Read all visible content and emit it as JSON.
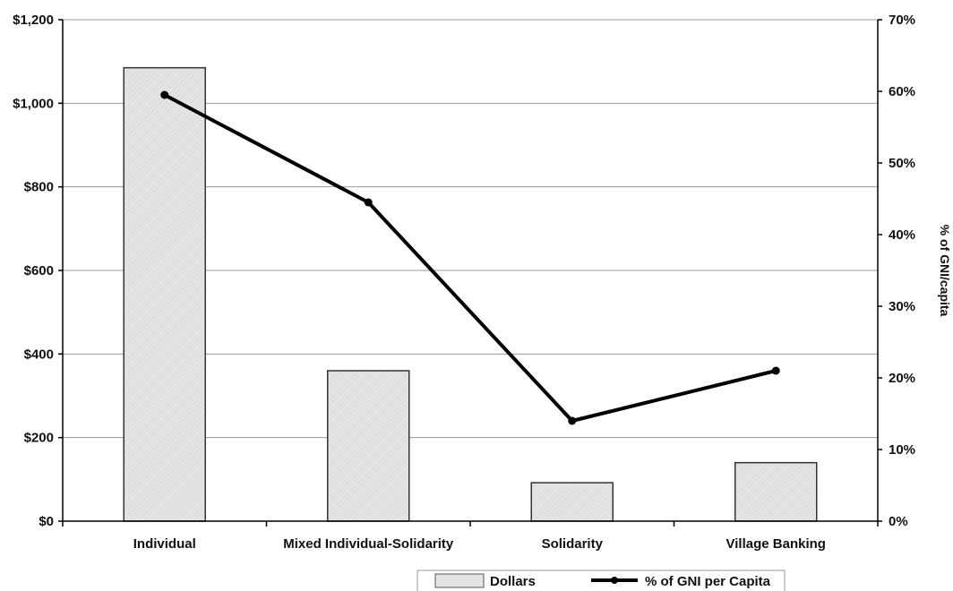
{
  "chart_data": {
    "type": "bar",
    "categories": [
      "Individual",
      "Mixed Individual-Solidarity",
      "Solidarity",
      "Village Banking"
    ],
    "series": [
      {
        "name": "Dollars",
        "type": "bar",
        "axis": "left",
        "values": [
          1085,
          360,
          92,
          140
        ],
        "color": "#e4e4e4"
      },
      {
        "name": "% of GNI per Capita",
        "type": "line",
        "axis": "right",
        "values": [
          59.5,
          44.5,
          14,
          21
        ],
        "color": "#000000"
      }
    ],
    "y_left": {
      "range": [
        0,
        1200
      ],
      "ticks": [
        0,
        200,
        400,
        600,
        800,
        1000,
        1200
      ],
      "tick_labels": [
        "$0",
        "$200",
        "$400",
        "$600",
        "$800",
        "$1,000",
        "$1,200"
      ],
      "label": ""
    },
    "y_right": {
      "range": [
        0,
        70
      ],
      "ticks": [
        0,
        10,
        20,
        30,
        40,
        50,
        60,
        70
      ],
      "tick_labels": [
        "0%",
        "10%",
        "20%",
        "30%",
        "40%",
        "50%",
        "60%",
        "70%"
      ],
      "label": "% of GNI/capita"
    },
    "grid": true,
    "legend": {
      "position": "bottom-right",
      "entries": [
        "Dollars",
        "% of GNI per Capita"
      ]
    }
  }
}
